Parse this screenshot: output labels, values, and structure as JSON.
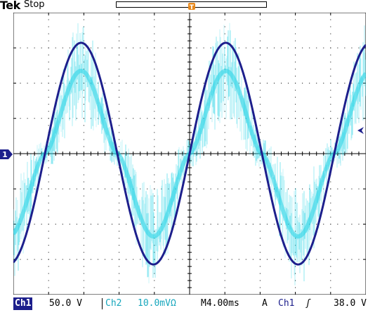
{
  "header": {
    "brand": "Tek",
    "acquisition_status": "Stop",
    "trigger_position_glyph": "T",
    "trigger_marker_glyph": "T"
  },
  "channel_marker": {
    "ch1_label": "1"
  },
  "status_bar": {
    "ch1_label": "Ch1",
    "ch1_scale": "50.0 V",
    "ch2_label": "Ch2",
    "ch2_scale": "10.0mVΩ",
    "timebase_prefix": "M",
    "timebase": "4.00ms",
    "trigger_mode": "A",
    "trigger_source": "Ch1",
    "trigger_slope": "ʃ",
    "trigger_level": "38.0 V"
  },
  "colors": {
    "ch1": "#1d1f8c",
    "ch2": "#27d4e6",
    "trigger": "#e8891d",
    "graticule": "#000000",
    "background": "#ffffff"
  },
  "icons": {
    "ch1_ground_marker": "right-pointing-pennant",
    "trigger_point": "down-triangle",
    "trigger_level": "left-pointing-arrowhead"
  }
}
